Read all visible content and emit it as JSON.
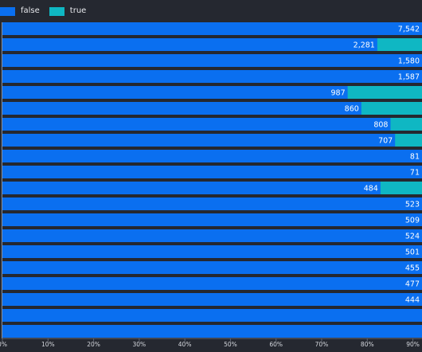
{
  "chart_data": {
    "type": "bar",
    "orientation": "horizontal",
    "stacked_percent": true,
    "legend_position": "top-left",
    "grid": false,
    "series": [
      {
        "name": "false",
        "color": "#0a6ff0"
      },
      {
        "name": "true",
        "color": "#0fb7c3"
      }
    ],
    "rows": [
      {
        "false_share": 0.957,
        "label": "7,542"
      },
      {
        "false_share": 0.822,
        "label": "2,281"
      },
      {
        "false_share": 0.99,
        "label": "1,580"
      },
      {
        "false_share": 1.0,
        "label": "1,587"
      },
      {
        "false_share": 0.757,
        "label": "987"
      },
      {
        "false_share": 0.787,
        "label": "860"
      },
      {
        "false_share": 0.851,
        "label": "808"
      },
      {
        "false_share": 0.861,
        "label": "707"
      },
      {
        "false_share": 1.0,
        "label": "81"
      },
      {
        "false_share": 1.0,
        "label": "71"
      },
      {
        "false_share": 0.829,
        "label": "484"
      },
      {
        "false_share": 0.93,
        "label": "523"
      },
      {
        "false_share": 0.97,
        "label": "509"
      },
      {
        "false_share": 1.0,
        "label": "524"
      },
      {
        "false_share": 0.98,
        "label": "501"
      },
      {
        "false_share": 0.937,
        "label": "455"
      },
      {
        "false_share": 0.996,
        "label": "477"
      },
      {
        "false_share": 0.934,
        "label": "444"
      },
      {
        "false_share": 1.0,
        "label": ""
      },
      {
        "false_share": 1.0,
        "label": ""
      }
    ],
    "xaxis": {
      "range": [
        0,
        92
      ],
      "tick_labels": [
        "0%",
        "10%",
        "20%",
        "30%",
        "40%",
        "50%",
        "60%",
        "70%",
        "80%",
        "90%"
      ]
    }
  }
}
